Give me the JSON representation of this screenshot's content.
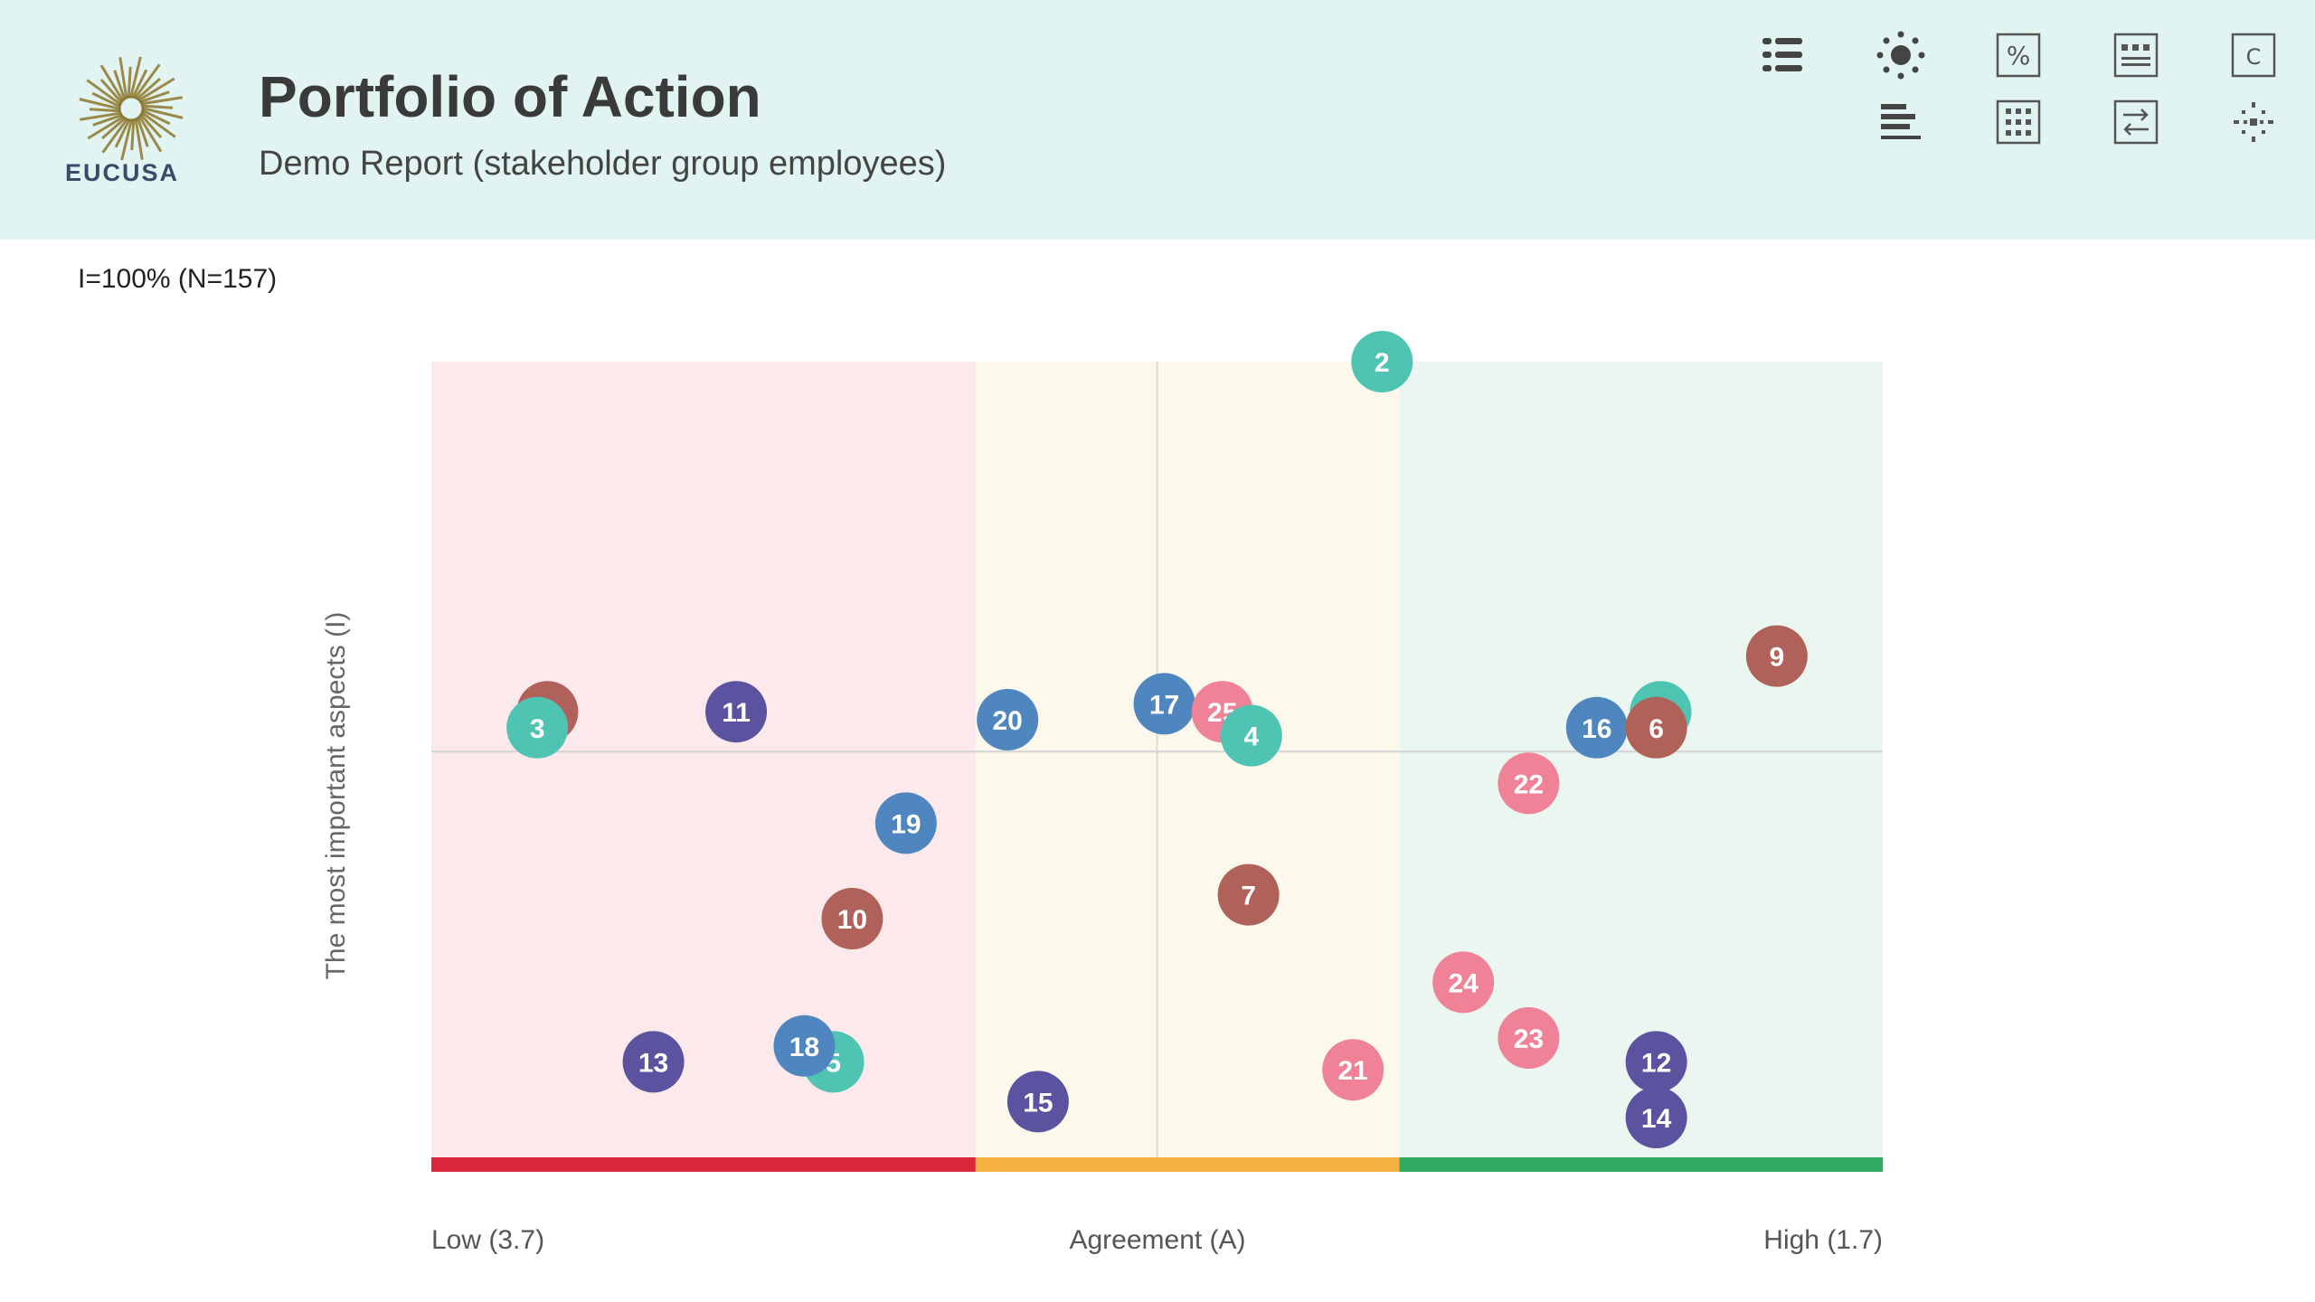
{
  "header": {
    "logo_text": "EUCUSA",
    "title": "Portfolio of Action",
    "subtitle": "Demo Report (stakeholder group employees)"
  },
  "toolbar": {
    "icons": [
      "list-view-icon",
      "sun-icon",
      "percent-icon",
      "table-view-icon",
      "c-icon",
      "bar-list-icon",
      "grid-view-icon",
      "swap-icon",
      "scatter-icon"
    ]
  },
  "info_text": "I=100% (N=157)",
  "colors": {
    "zone_low": "#fbe9ec",
    "zone_mid": "#fdf8ec",
    "zone_high": "#eaf6ef",
    "bar_low": "#d9263a",
    "bar_mid": "#f4b342",
    "bar_high": "#2eaa62",
    "teal": "#4fc4b3",
    "brown": "#b0625a",
    "purple": "#5b53a0",
    "blue": "#4f86c0",
    "pink": "#ef8296"
  },
  "chart_data": {
    "type": "scatter",
    "xlabel": "Agreement (A)",
    "ylabel": "The most important aspects (I)",
    "x_low_label": "Low (3.7)",
    "x_high_label": "High (1.7)",
    "xlim": [
      0,
      100
    ],
    "ylim": [
      0,
      100
    ],
    "zones": [
      {
        "name": "low",
        "from": 0,
        "to": 37.5
      },
      {
        "name": "mid",
        "from": 37.5,
        "to": 66.7
      },
      {
        "name": "high",
        "from": 66.7,
        "to": 100
      }
    ],
    "crosshair": {
      "x": 50,
      "y": 51
    },
    "points": [
      {
        "label": "2",
        "x": 65.5,
        "y": 100,
        "color": "teal"
      },
      {
        "label": "",
        "x": 8,
        "y": 56,
        "color": "brown"
      },
      {
        "label": "3",
        "x": 7.3,
        "y": 54,
        "color": "teal"
      },
      {
        "label": "11",
        "x": 21,
        "y": 56,
        "color": "purple"
      },
      {
        "label": "20",
        "x": 39.7,
        "y": 55,
        "color": "blue"
      },
      {
        "label": "17",
        "x": 50.5,
        "y": 57,
        "color": "blue"
      },
      {
        "label": "25",
        "x": 54.5,
        "y": 56,
        "color": "pink"
      },
      {
        "label": "4",
        "x": 56.5,
        "y": 53,
        "color": "teal"
      },
      {
        "label": "9",
        "x": 92.7,
        "y": 63,
        "color": "brown"
      },
      {
        "label": "",
        "x": 84.7,
        "y": 56,
        "color": "teal"
      },
      {
        "label": "16",
        "x": 80.3,
        "y": 54,
        "color": "blue"
      },
      {
        "label": "6",
        "x": 84.4,
        "y": 54,
        "color": "brown"
      },
      {
        "label": "22",
        "x": 75.6,
        "y": 47,
        "color": "pink"
      },
      {
        "label": "19",
        "x": 32.7,
        "y": 42,
        "color": "blue"
      },
      {
        "label": "10",
        "x": 29,
        "y": 30,
        "color": "brown"
      },
      {
        "label": "7",
        "x": 56.3,
        "y": 33,
        "color": "brown"
      },
      {
        "label": "24",
        "x": 71.1,
        "y": 22,
        "color": "pink"
      },
      {
        "label": "23",
        "x": 75.6,
        "y": 15,
        "color": "pink"
      },
      {
        "label": "13",
        "x": 15.3,
        "y": 12,
        "color": "purple"
      },
      {
        "label": "5",
        "x": 27.7,
        "y": 12,
        "color": "teal"
      },
      {
        "label": "18",
        "x": 25.7,
        "y": 14,
        "color": "blue"
      },
      {
        "label": "15",
        "x": 41.8,
        "y": 7,
        "color": "purple"
      },
      {
        "label": "21",
        "x": 63.5,
        "y": 11,
        "color": "pink"
      },
      {
        "label": "12",
        "x": 84.4,
        "y": 12,
        "color": "purple"
      },
      {
        "label": "14",
        "x": 84.4,
        "y": 5,
        "color": "purple"
      }
    ]
  }
}
